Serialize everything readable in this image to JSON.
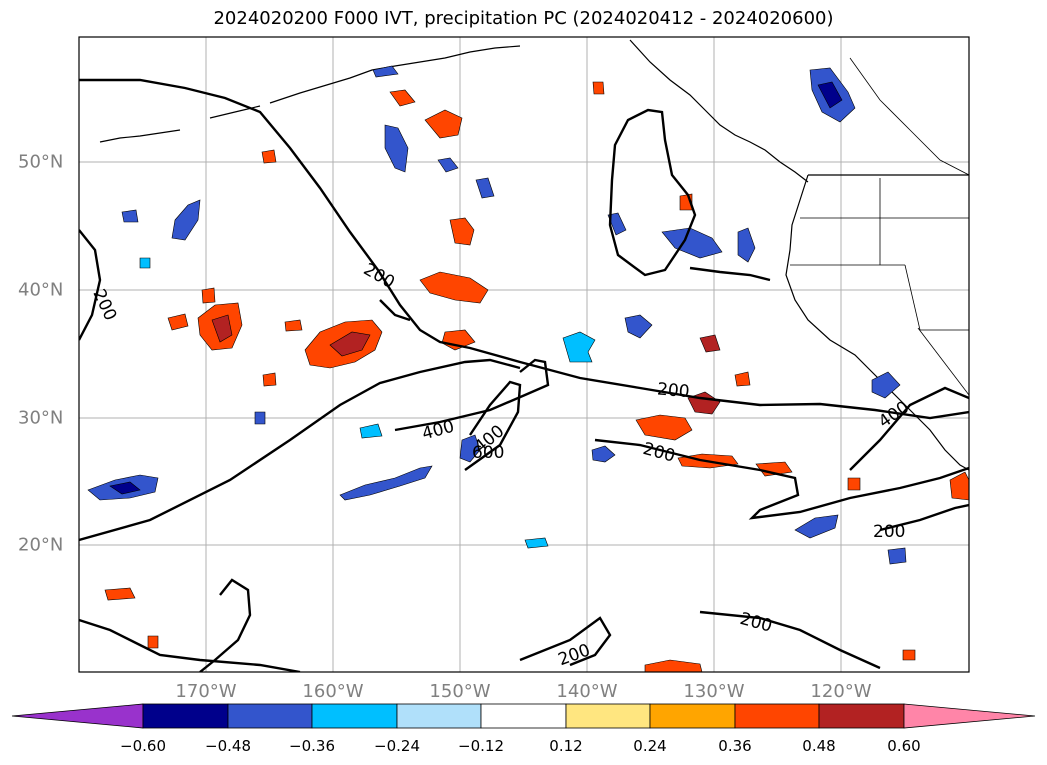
{
  "title": "2024020200 F000 IVT, precipitation PC (2024020412 - 2024020600)",
  "lon_ticks": [
    "170°W",
    "160°W",
    "150°W",
    "140°W",
    "130°W",
    "120°W"
  ],
  "lat_ticks": [
    "50°N",
    "40°N",
    "30°N",
    "20°N"
  ],
  "contour_labels": [
    "200",
    "200",
    "200",
    "200",
    "200",
    "200",
    "200",
    "400",
    "400",
    "400",
    "600"
  ],
  "colorbar": {
    "labels": [
      "−0.60",
      "−0.48",
      "−0.36",
      "−0.24",
      "−0.12",
      "0.12",
      "0.24",
      "0.36",
      "0.48",
      "0.60"
    ],
    "colors": [
      "#9932cc",
      "#00008b",
      "#3355cc",
      "#00bfff",
      "#b0e0fa",
      "#ffffff",
      "#ffe680",
      "#ffa500",
      "#ff4500",
      "#b22222",
      "#ff85a8"
    ]
  }
}
